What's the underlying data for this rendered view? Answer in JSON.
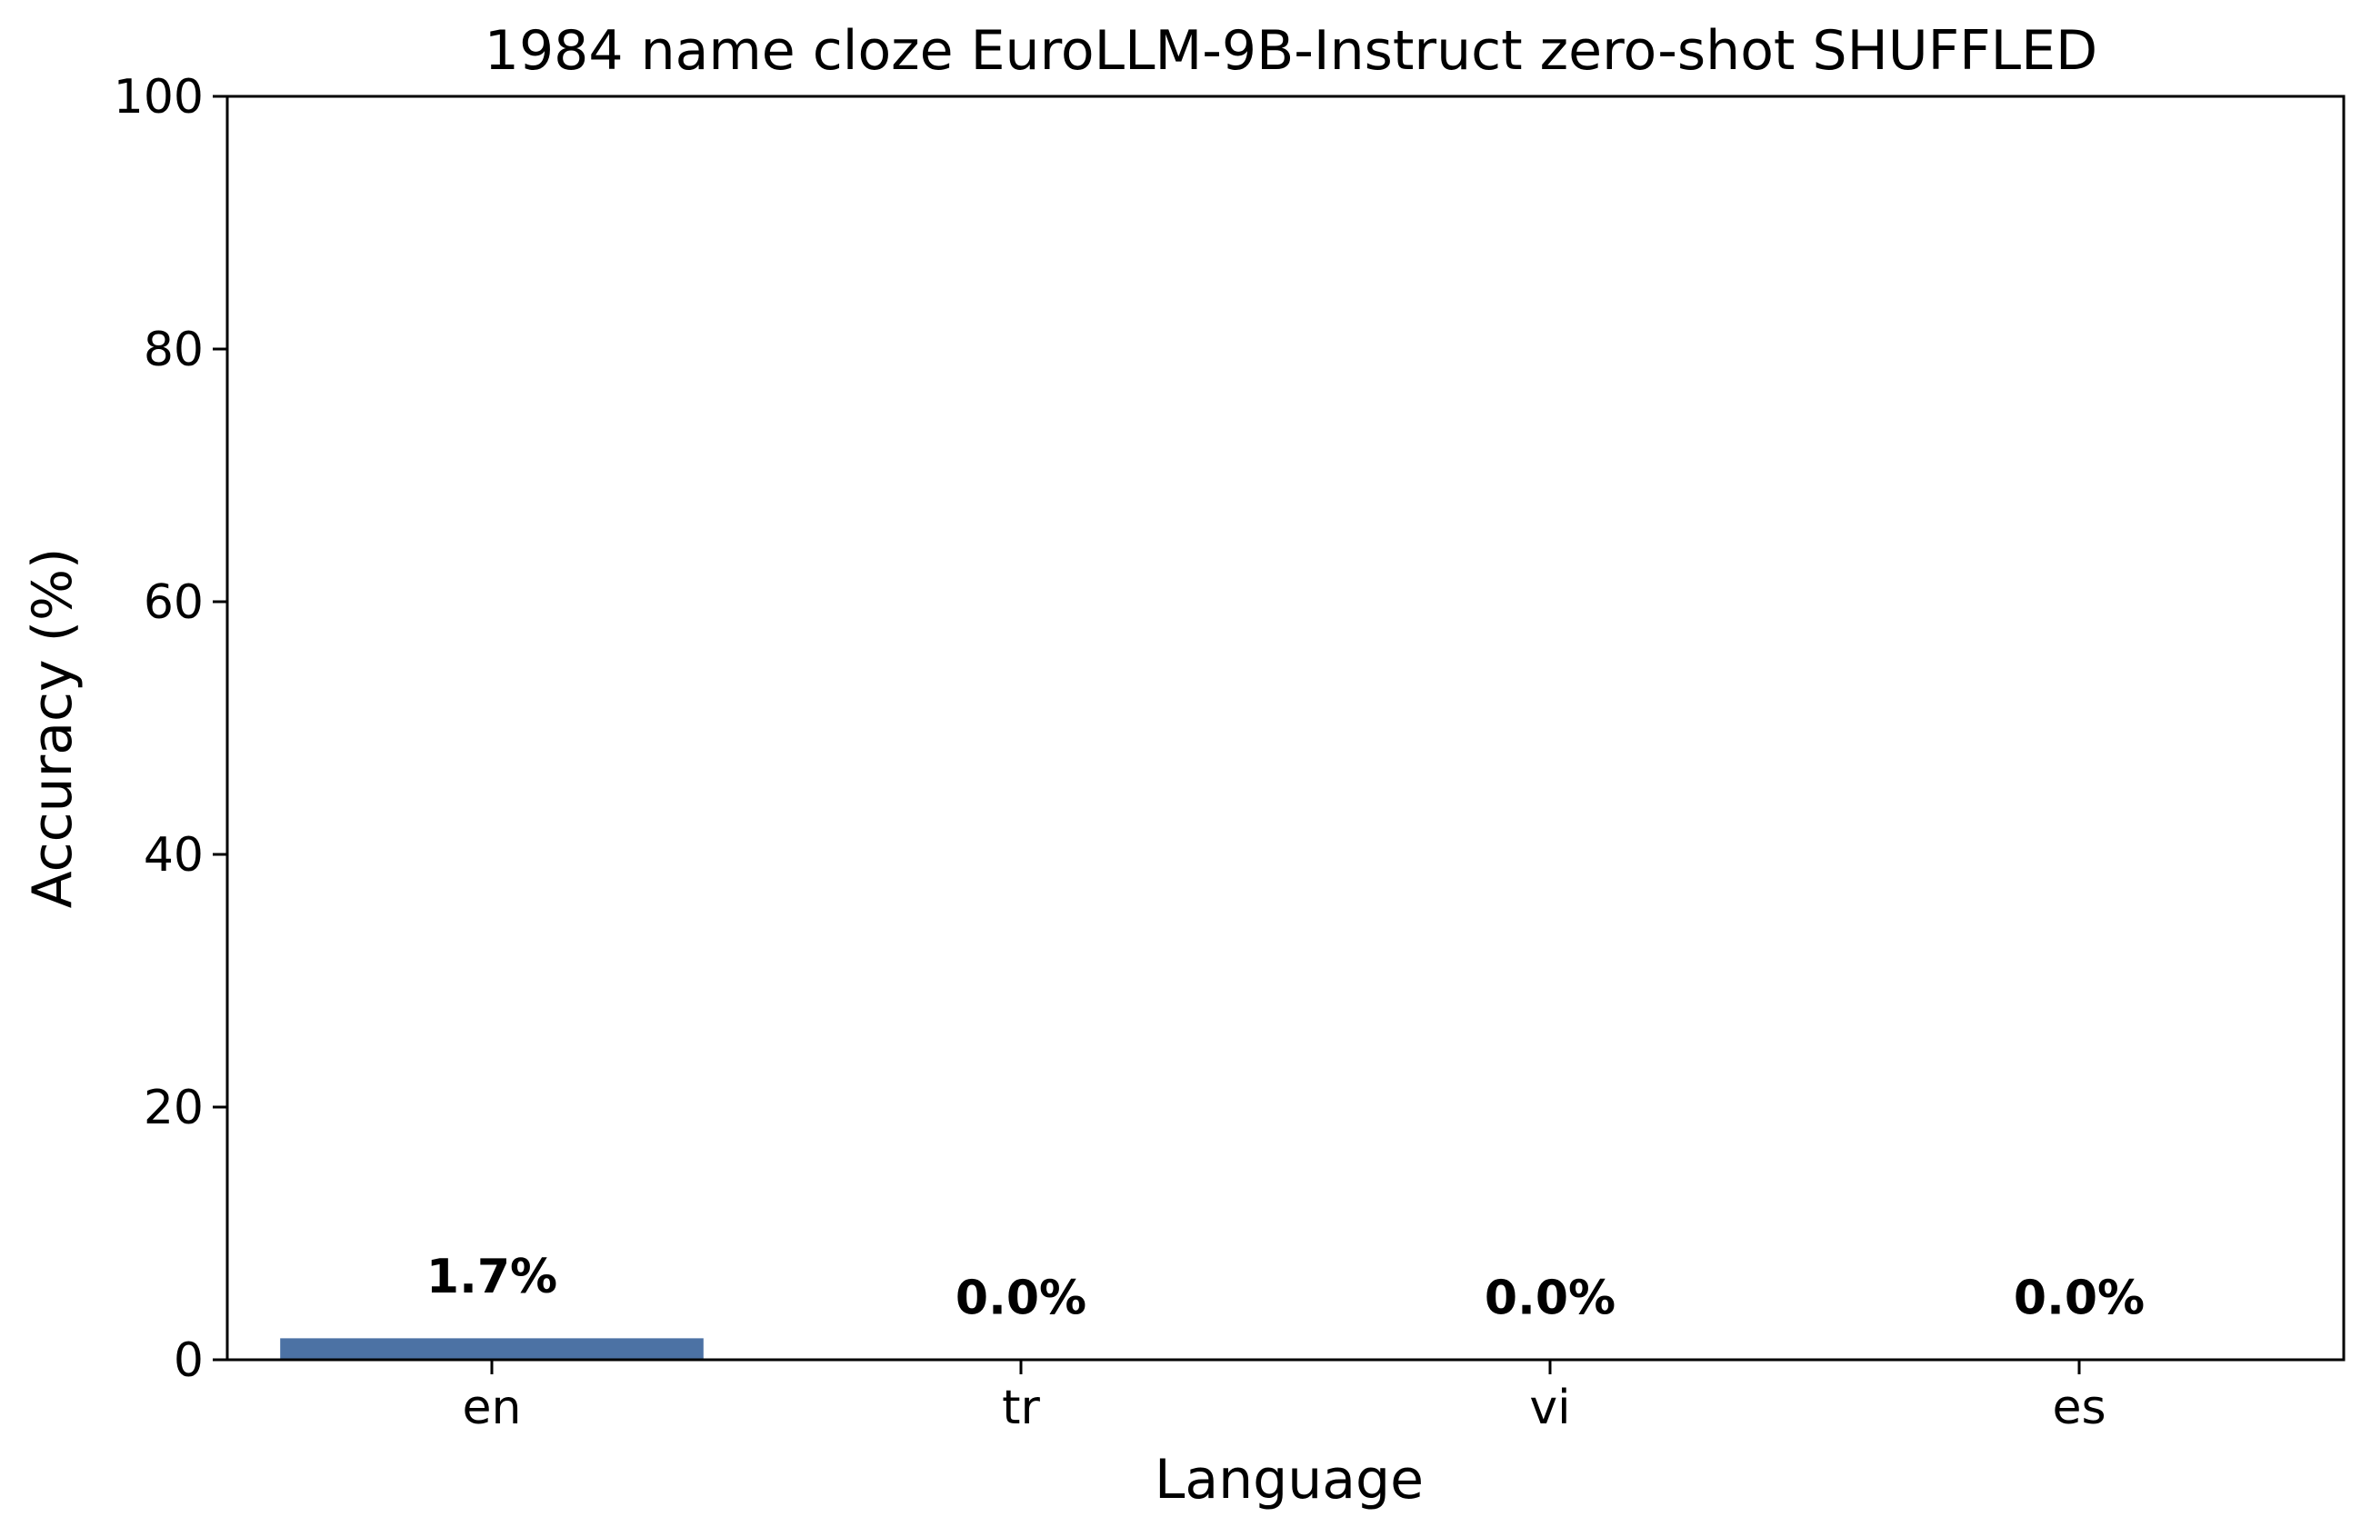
{
  "chart_data": {
    "type": "bar",
    "title": "1984 name cloze EuroLLM-9B-Instruct zero-shot SHUFFLED",
    "xlabel": "Language",
    "ylabel": "Accuracy (%)",
    "categories": [
      "en",
      "tr",
      "vi",
      "es"
    ],
    "values": [
      1.7,
      0.0,
      0.0,
      0.0
    ],
    "data_labels": [
      "1.7%",
      "0.0%",
      "0.0%",
      "0.0%"
    ],
    "ylim": [
      0,
      100
    ],
    "yticks": [
      "0",
      "20",
      "40",
      "60",
      "80",
      "100"
    ],
    "grid": false,
    "bar_color": "#4c72a4"
  }
}
